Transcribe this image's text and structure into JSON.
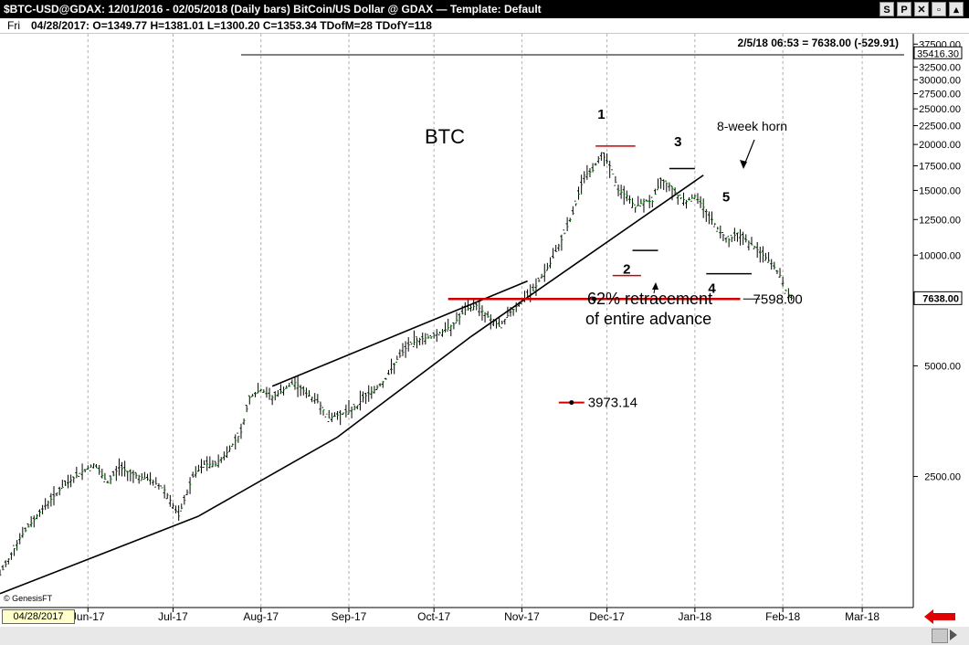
{
  "titlebar": {
    "title": "$BTC-USD@GDAX:  12/01/2016 - 02/05/2018  (Daily bars)   BitCoin/US Dollar @ GDAX  —  Template: Default",
    "btn_s": "S",
    "btn_p": "P"
  },
  "infobar": {
    "day": "Fri",
    "ohlc": "04/28/2017:  O=1349.77  H=1381.01  L=1300.20  C=1353.34  TDofM=28  TDofY=118"
  },
  "chart_data": {
    "type": "line",
    "subtype": "daily-bars",
    "title": "BTC",
    "scale": "log",
    "ylim": [
      1100,
      40000
    ],
    "y_ticks": [
      {
        "v": 37500,
        "label": "37500.00"
      },
      {
        "v": 32500,
        "label": "32500.00"
      },
      {
        "v": 30000,
        "label": "30000.00"
      },
      {
        "v": 27500,
        "label": "27500.00"
      },
      {
        "v": 25000,
        "label": "25000.00"
      },
      {
        "v": 22500,
        "label": "22500.00"
      },
      {
        "v": 20000,
        "label": "20000.00"
      },
      {
        "v": 17500,
        "label": "17500.00"
      },
      {
        "v": 15000,
        "label": "15000.00"
      },
      {
        "v": 12500,
        "label": "12500.00"
      },
      {
        "v": 10000,
        "label": "10000.00"
      },
      {
        "v": 7500,
        "label": "7500.00"
      },
      {
        "v": 5000,
        "label": "5000.00"
      },
      {
        "v": 2500,
        "label": "2500.00"
      }
    ],
    "x_ticks": [
      {
        "label": "Jun-17",
        "t": 31
      },
      {
        "label": "Jul-17",
        "t": 61
      },
      {
        "label": "Aug-17",
        "t": 92
      },
      {
        "label": "Sep-17",
        "t": 123
      },
      {
        "label": "Oct-17",
        "t": 153
      },
      {
        "label": "Nov-17",
        "t": 184
      },
      {
        "label": "Dec-17",
        "t": 214
      },
      {
        "label": "Jan-18",
        "t": 245
      },
      {
        "label": "Feb-18",
        "t": 276
      },
      {
        "label": "Mar-18",
        "t": 304
      }
    ],
    "xlim": [
      0,
      322
    ],
    "series": [
      {
        "x": [
          0,
          7,
          14,
          21,
          28,
          33,
          38,
          42,
          46,
          49,
          53,
          58,
          63,
          68,
          72,
          76,
          80,
          85,
          88,
          92,
          96,
          100,
          104,
          108,
          112,
          116,
          120,
          124,
          126,
          128,
          132,
          136,
          140,
          144,
          148,
          152,
          156,
          160,
          164,
          168,
          172,
          176,
          180,
          184,
          188,
          190,
          194,
          198,
          202,
          206,
          209,
          212,
          215,
          218,
          221,
          224,
          227,
          230,
          233,
          236,
          239,
          242,
          245,
          248,
          251,
          254,
          257,
          260,
          263,
          266,
          269,
          272,
          275,
          277,
          279
        ],
        "y": [
          1350,
          1700,
          2000,
          2300,
          2550,
          2700,
          2400,
          2650,
          2550,
          2500,
          2450,
          2300,
          1950,
          2500,
          2700,
          2700,
          2900,
          3300,
          4100,
          4300,
          4100,
          4300,
          4500,
          4200,
          4000,
          3600,
          3700,
          3800,
          3900,
          4100,
          4300,
          4600,
          5200,
          5700,
          5900,
          6000,
          6200,
          6500,
          7100,
          7300,
          6800,
          6400,
          7000,
          7500,
          8000,
          8500,
          9500,
          11000,
          13000,
          16500,
          17000,
          19000,
          17500,
          15000,
          14500,
          13500,
          14000,
          14000,
          16000,
          15500,
          14500,
          14000,
          14500,
          13500,
          12500,
          11500,
          11000,
          11500,
          11000,
          10500,
          10000,
          9500,
          8800,
          8000,
          7638
        ]
      }
    ],
    "trendlines": [
      {
        "x1": 0,
        "y1": 1200,
        "x2": 70,
        "y2": 1950
      },
      {
        "x1": 70,
        "y1": 1950,
        "x2": 119,
        "y2": 3200
      },
      {
        "x1": 119,
        "y1": 3200,
        "x2": 166,
        "y2": 6000
      },
      {
        "x1": 166,
        "y1": 6000,
        "x2": 248,
        "y2": 16500
      },
      {
        "x1": 96,
        "y1": 4400,
        "x2": 186,
        "y2": 8500
      }
    ],
    "levels": [
      {
        "value": 7598,
        "label": "7598.00",
        "x_from": 158,
        "x_to": 261,
        "color": "#d00000"
      },
      {
        "value": 3973.14,
        "label": "3973.14",
        "x_from": 197,
        "x_to": 206,
        "color": "#d00000"
      }
    ],
    "wave_labels": [
      "1",
      "2",
      "3",
      "4",
      "5"
    ],
    "annotations": {
      "horn": "8-week horn",
      "retracement_line1": "62% retracement",
      "retracement_line2": "of entire advance"
    },
    "right_labels": {
      "top_value": "35416.30",
      "last_value": "7638.00"
    },
    "header_readout": "2/5/18 06:53 = 7638.00 (-529.91)",
    "copyright": "© GenesisFT"
  },
  "footer": {
    "date": "04/28/2017"
  }
}
